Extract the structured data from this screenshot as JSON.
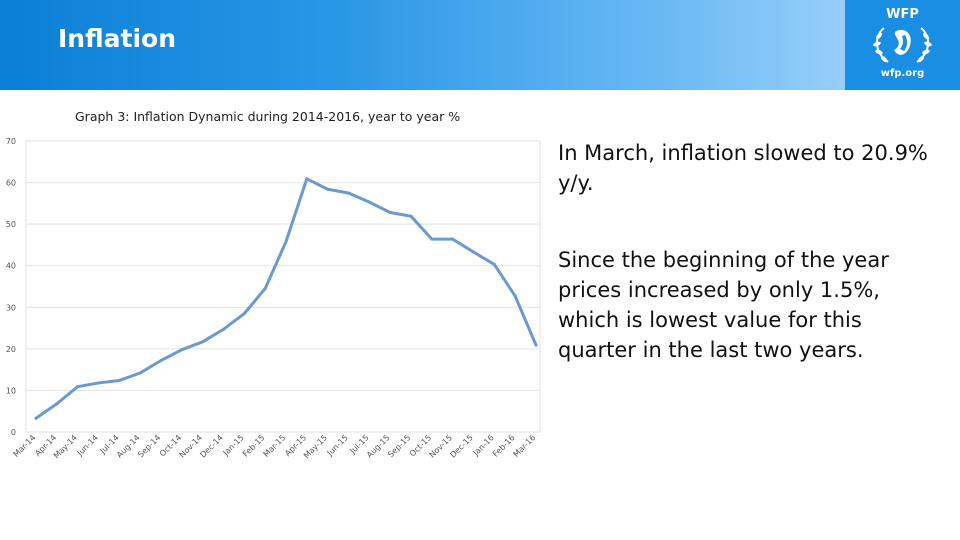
{
  "header": {
    "title": "Inflation"
  },
  "logo": {
    "top_text": "WFP",
    "bottom_text": "wfp.org",
    "icon": "un-wreath-icon"
  },
  "colors": {
    "header": "#0a7fd6",
    "line": "#6a9ad0",
    "grid": "#e2e2e2"
  },
  "notes": [
    "In March, inflation slowed to 20.9% y/y.",
    "Since the beginning of the year prices increased by only 1.5%, which is lowest value for this quarter in the last two years."
  ],
  "chart_data": {
    "type": "line",
    "title": "Graph 3: Inflation Dynamic during 2014-2016, year to year %",
    "categories": [
      "Mar-14",
      "Apr-14",
      "May-14",
      "Jun-14",
      "Jul-14",
      "Aug-14",
      "Sep-14",
      "Oct-14",
      "Nov-14",
      "Dec-14",
      "Jan-15",
      "Feb-15",
      "Mar-15",
      "Apr-15",
      "May-15",
      "Jun-15",
      "Jul-15",
      "Aug-15",
      "Sep-15",
      "Oct-15",
      "Nov-15",
      "Dec-15",
      "Jan-16",
      "Feb-16",
      "Mar-16"
    ],
    "series": [
      {
        "values": [
          3.3,
          6.8,
          10.9,
          11.8,
          12.4,
          14.2,
          17.2,
          19.8,
          21.7,
          24.7,
          28.5,
          34.5,
          45.8,
          60.9,
          58.4,
          57.5,
          55.3,
          52.8,
          51.9,
          46.4,
          46.4,
          43.3,
          40.3,
          32.7,
          20.9
        ]
      }
    ],
    "ylim": [
      0,
      70
    ],
    "yticks": [
      0,
      10,
      20,
      30,
      40,
      50,
      60,
      70
    ],
    "grid": true,
    "legend": "none"
  }
}
